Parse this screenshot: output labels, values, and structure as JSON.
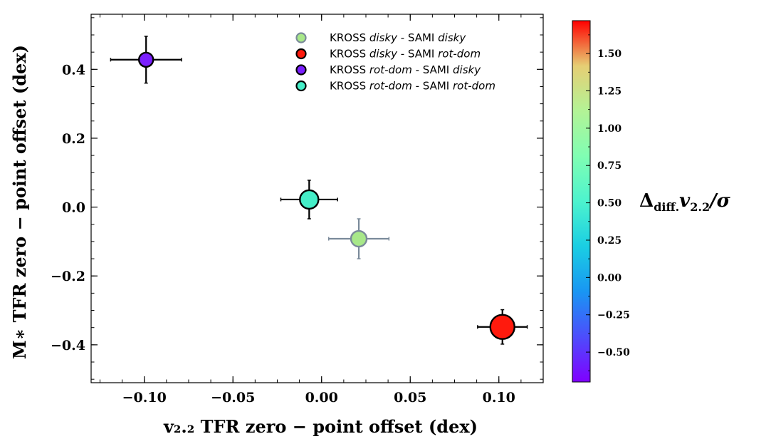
{
  "chart_data": {
    "type": "scatter",
    "xlabel": "v₂.₂ TFR zero − point offset (dex)",
    "ylabel": "M∗ TFR zero − point offset (dex)",
    "xlim": [
      -0.13,
      0.125
    ],
    "ylim": [
      -0.51,
      0.56
    ],
    "x_ticks": [
      -0.1,
      -0.05,
      0.0,
      0.05,
      0.1
    ],
    "x_tick_labels": [
      "−0.10",
      "−0.05",
      "0.00",
      "0.05",
      "0.10"
    ],
    "y_ticks": [
      -0.4,
      -0.2,
      0.0,
      0.2,
      0.4
    ],
    "y_tick_labels": [
      "−0.4",
      "−0.2",
      "0.0",
      "0.2",
      "0.4"
    ],
    "grid": false,
    "legend_position": "top-right",
    "colorbar": {
      "label": "Δdiff.v2.2/σ",
      "range": [
        -0.7,
        1.72
      ],
      "ticks": [
        -0.5,
        -0.25,
        0.0,
        0.25,
        0.5,
        0.75,
        1.0,
        1.25,
        1.5
      ],
      "tick_labels": [
        "−0.50",
        "−0.25",
        "0.00",
        "0.25",
        "0.50",
        "0.75",
        "1.00",
        "1.25",
        "1.50"
      ]
    },
    "series": [
      {
        "name": "KROSS disky - SAMI disky",
        "name_parts": [
          "KROSS ",
          "disky",
          " - SAMI ",
          "disky"
        ],
        "x": 0.021,
        "y": -0.092,
        "xerr": 0.017,
        "yerr": 0.058,
        "c": 0.72,
        "size": 11,
        "color": "#a8e889",
        "edge": "#7a8a9a"
      },
      {
        "name": "KROSS disky - SAMI rot-dom",
        "name_parts": [
          "KROSS ",
          "disky",
          " - SAMI ",
          "rot-dom"
        ],
        "x": 0.102,
        "y": -0.348,
        "xerr": 0.014,
        "yerr": 0.05,
        "c": 1.72,
        "size": 17,
        "color": "#ff1a0d",
        "edge": "#000000"
      },
      {
        "name": "KROSS rot-dom - SAMI disky",
        "name_parts": [
          "KROSS ",
          "rot-dom",
          " - SAMI ",
          "disky"
        ],
        "x": -0.099,
        "y": 0.428,
        "xerr": 0.02,
        "yerr": 0.068,
        "c": -0.62,
        "size": 10,
        "color": "#7b1fff",
        "edge": "#000000"
      },
      {
        "name": "KROSS rot-dom - SAMI rot-dom",
        "name_parts": [
          "KROSS ",
          "rot-dom",
          " - SAMI ",
          "rot-dom"
        ],
        "x": -0.007,
        "y": 0.022,
        "xerr": 0.016,
        "yerr": 0.056,
        "c": 0.38,
        "size": 13,
        "color": "#45eec8",
        "edge": "#000000"
      }
    ]
  }
}
